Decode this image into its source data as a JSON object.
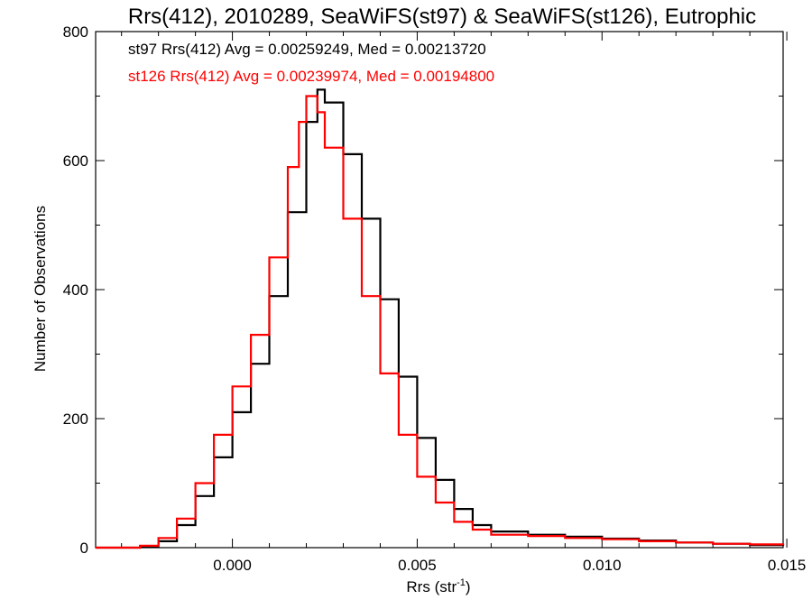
{
  "chart_data": {
    "type": "step-histogram",
    "title": "Rrs(412), 2010289, SeaWiFS(st97) & SeaWiFS(st126), Eutrophic",
    "xlabel": "Rrs (str",
    "xlabel_sup": "-1",
    "xlabel_close": ")",
    "ylabel": "Number of Observations",
    "xlim": [
      -0.0037,
      0.0149
    ],
    "ylim": [
      0,
      800
    ],
    "xticks": [
      {
        "value": 0.0,
        "label": "0.000"
      },
      {
        "value": 0.005,
        "label": "0.005"
      },
      {
        "value": 0.01,
        "label": "0.010"
      },
      {
        "value": 0.015,
        "label": "0.015"
      }
    ],
    "yticks": [
      {
        "value": 0,
        "label": "0"
      },
      {
        "value": 200,
        "label": "200"
      },
      {
        "value": 400,
        "label": "400"
      },
      {
        "value": 600,
        "label": "600"
      },
      {
        "value": 800,
        "label": "800"
      }
    ],
    "annotations": [
      {
        "text": "st97 Rrs(412) Avg = 0.00259249, Med = 0.00213720",
        "color": "#000000"
      },
      {
        "text": "st126 Rrs(412) Avg = 0.00239974, Med = 0.00194800",
        "color": "#ff0000"
      }
    ],
    "series": [
      {
        "color": "#000000",
        "points": [
          [
            -0.0037,
            0
          ],
          [
            -0.003,
            0
          ],
          [
            -0.0025,
            2
          ],
          [
            -0.002,
            10
          ],
          [
            -0.0015,
            35
          ],
          [
            -0.001,
            80
          ],
          [
            -0.0005,
            140
          ],
          [
            0.0,
            210
          ],
          [
            0.0005,
            285
          ],
          [
            0.001,
            390
          ],
          [
            0.0015,
            520
          ],
          [
            0.002,
            660
          ],
          [
            0.0023,
            710
          ],
          [
            0.0025,
            690
          ],
          [
            0.003,
            610
          ],
          [
            0.0035,
            510
          ],
          [
            0.004,
            385
          ],
          [
            0.0045,
            265
          ],
          [
            0.005,
            170
          ],
          [
            0.0055,
            105
          ],
          [
            0.006,
            60
          ],
          [
            0.0065,
            35
          ],
          [
            0.007,
            25
          ],
          [
            0.008,
            20
          ],
          [
            0.009,
            17
          ],
          [
            0.01,
            14
          ],
          [
            0.011,
            11
          ],
          [
            0.012,
            8
          ],
          [
            0.013,
            6
          ],
          [
            0.014,
            4
          ],
          [
            0.0149,
            3
          ]
        ]
      },
      {
        "color": "#ff0000",
        "points": [
          [
            -0.0037,
            0
          ],
          [
            -0.003,
            0
          ],
          [
            -0.0025,
            3
          ],
          [
            -0.002,
            15
          ],
          [
            -0.0015,
            45
          ],
          [
            -0.001,
            100
          ],
          [
            -0.0005,
            175
          ],
          [
            0.0,
            250
          ],
          [
            0.0005,
            330
          ],
          [
            0.001,
            450
          ],
          [
            0.0015,
            590
          ],
          [
            0.0018,
            660
          ],
          [
            0.002,
            700
          ],
          [
            0.0023,
            675
          ],
          [
            0.0025,
            620
          ],
          [
            0.003,
            510
          ],
          [
            0.0035,
            390
          ],
          [
            0.004,
            270
          ],
          [
            0.0045,
            175
          ],
          [
            0.005,
            110
          ],
          [
            0.0055,
            70
          ],
          [
            0.006,
            40
          ],
          [
            0.0065,
            28
          ],
          [
            0.007,
            20
          ],
          [
            0.008,
            18
          ],
          [
            0.009,
            15
          ],
          [
            0.01,
            13
          ],
          [
            0.011,
            10
          ],
          [
            0.012,
            8
          ],
          [
            0.013,
            6
          ],
          [
            0.014,
            5
          ],
          [
            0.0149,
            4
          ]
        ]
      }
    ]
  }
}
